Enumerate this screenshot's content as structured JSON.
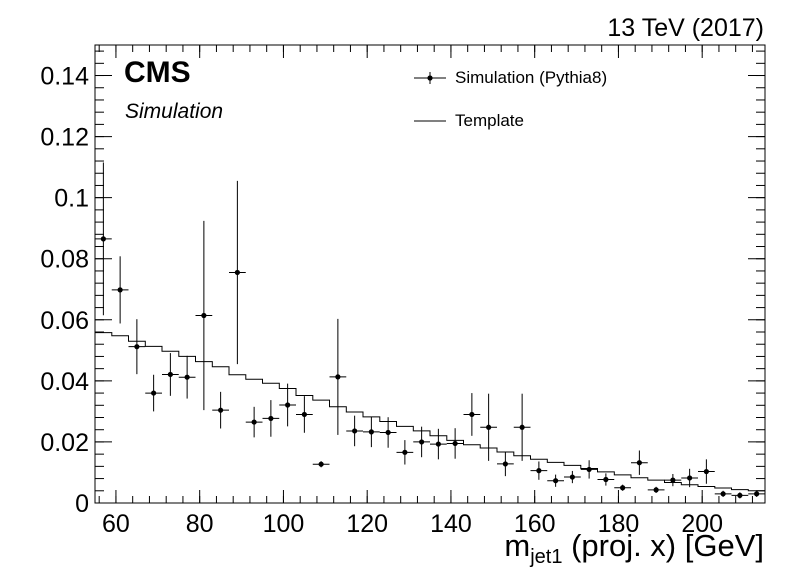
{
  "header": {
    "lumi": "13 TeV (2017)",
    "experiment": "CMS",
    "subtitle": "Simulation"
  },
  "legend": [
    {
      "label": "Simulation (Pythia8)",
      "style": "points"
    },
    {
      "label": "Template",
      "style": "line"
    }
  ],
  "xaxis": {
    "label_main": "m",
    "label_sub": "jet1",
    "label_rest": " (proj. x) [GeV]"
  },
  "colors": {
    "axis": "#000000",
    "data": "#000000",
    "template": "#000000"
  },
  "chart_data": {
    "type": "line",
    "xlabel": "m_jet1 (proj. x) [GeV]",
    "ylabel": "",
    "xlim": [
      55,
      215
    ],
    "ylim": [
      0,
      0.15
    ],
    "xticks": [
      60,
      80,
      100,
      120,
      140,
      160,
      180,
      200
    ],
    "yticks": [
      0,
      0.02,
      0.04,
      0.06,
      0.08,
      0.1,
      0.12,
      0.14
    ],
    "ytick_labels": [
      "0",
      "0.02",
      "0.04",
      "0.06",
      "0.08",
      "0.1",
      "0.12",
      "0.14"
    ],
    "series": [
      {
        "name": "Simulation (Pythia8)",
        "kind": "points_with_errors",
        "bin_width": 4,
        "x": [
          57,
          61,
          65,
          69,
          73,
          77,
          81,
          85,
          89,
          93,
          97,
          101,
          105,
          109,
          113,
          117,
          121,
          125,
          129,
          133,
          137,
          141,
          145,
          149,
          153,
          157,
          161,
          165,
          169,
          173,
          177,
          181,
          185,
          189,
          193,
          197,
          201,
          205,
          209,
          213
        ],
        "y": [
          0.0865,
          0.0698,
          0.0512,
          0.036,
          0.0421,
          0.0412,
          0.0614,
          0.0304,
          0.0755,
          0.0265,
          0.0277,
          0.0321,
          0.029,
          0.0127,
          0.0413,
          0.0236,
          0.0233,
          0.0231,
          0.0166,
          0.02,
          0.0193,
          0.0195,
          0.029,
          0.0248,
          0.0128,
          0.0248,
          0.0106,
          0.0073,
          0.0085,
          0.011,
          0.0077,
          0.005,
          0.0132,
          0.0043,
          0.0075,
          0.0082,
          0.0103,
          0.003,
          0.0025,
          0.003
        ],
        "err": [
          0.025,
          0.011,
          0.009,
          0.006,
          0.007,
          0.007,
          0.031,
          0.006,
          0.03,
          0.005,
          0.006,
          0.007,
          0.006,
          0.001,
          0.019,
          0.005,
          0.005,
          0.005,
          0.004,
          0.005,
          0.005,
          0.005,
          0.007,
          0.011,
          0.004,
          0.011,
          0.003,
          0.002,
          0.002,
          0.003,
          0.002,
          0.001,
          0.004,
          0.001,
          0.002,
          0.003,
          0.004,
          0.001,
          0.001,
          0.001
        ]
      },
      {
        "name": "Template",
        "kind": "step",
        "bin_edges": [
          55,
          59,
          63,
          67,
          71,
          75,
          79,
          83,
          87,
          91,
          95,
          99,
          103,
          107,
          111,
          115,
          119,
          123,
          127,
          131,
          135,
          139,
          143,
          147,
          151,
          155,
          159,
          163,
          167,
          171,
          175,
          179,
          183,
          187,
          191,
          195,
          199,
          203,
          207,
          211,
          215
        ],
        "y": [
          0.0558,
          0.0548,
          0.053,
          0.0513,
          0.0497,
          0.048,
          0.0463,
          0.0446,
          0.042,
          0.0405,
          0.0392,
          0.0375,
          0.0352,
          0.0337,
          0.0315,
          0.0298,
          0.0282,
          0.0267,
          0.0251,
          0.0236,
          0.022,
          0.0205,
          0.0191,
          0.018,
          0.0167,
          0.0155,
          0.0143,
          0.0133,
          0.0123,
          0.0113,
          0.0102,
          0.0092,
          0.0083,
          0.0075,
          0.0067,
          0.006,
          0.0054,
          0.0049,
          0.0044,
          0.004
        ]
      }
    ]
  }
}
